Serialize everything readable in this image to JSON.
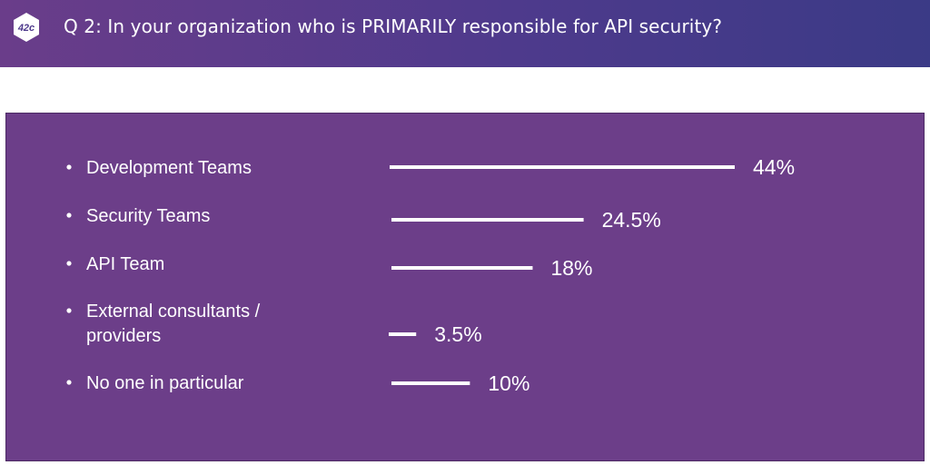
{
  "header": {
    "title": "Q 2: In your organization who is PRIMARILY responsible for API security?",
    "logo_icon": "42crunch-hexagon-logo",
    "logo_text": "42c",
    "background_color": "#4e3a8c"
  },
  "panel": {
    "background_color": "#6c3e89"
  },
  "chart_data": {
    "type": "bar",
    "orientation": "horizontal",
    "categories": [
      "Development Teams",
      "Security Teams",
      "API Team",
      "External consultants / providers",
      "No one in particular"
    ],
    "category_lines": [
      [
        "Development Teams"
      ],
      [
        "Security Teams"
      ],
      [
        "API Team"
      ],
      [
        "External consultants /",
        "providers"
      ],
      [
        "No one in particular"
      ]
    ],
    "values": [
      44,
      24.5,
      18,
      3.5,
      10
    ],
    "value_labels": [
      "44%",
      "24.5%",
      "18%",
      "3.5%",
      "10%"
    ],
    "unit": "%",
    "bar_color": "#ffffff",
    "label_color": "#ffffff",
    "xlim": [
      0,
      44
    ],
    "grid": false,
    "legend": "none"
  }
}
